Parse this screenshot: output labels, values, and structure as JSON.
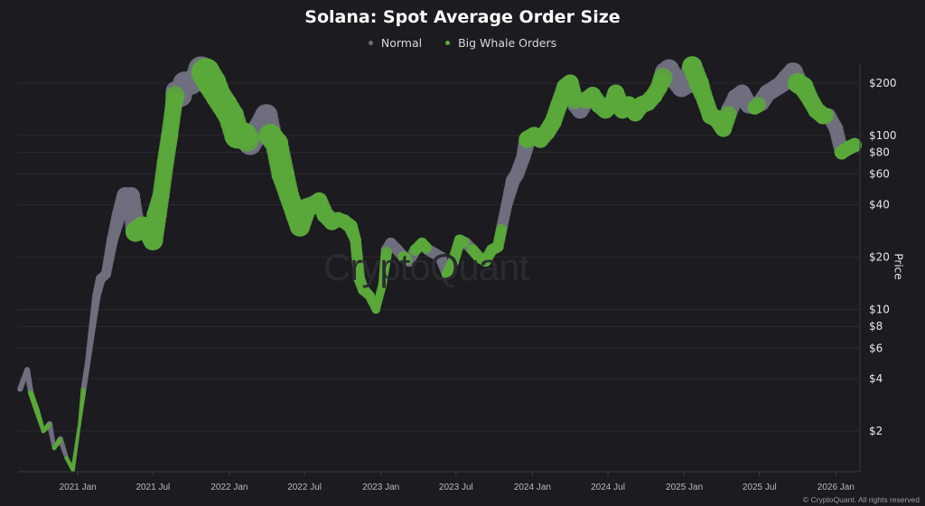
{
  "chart_data": {
    "type": "scatter",
    "title": "Solana: Spot Average Order Size",
    "ylabel": "Price",
    "xlabel": "",
    "yscale": "log",
    "ylim": [
      1.17,
      245
    ],
    "xlim": [
      "2020-08-10",
      "2026-02-28"
    ],
    "grid": true,
    "legend_placement": "top-center",
    "x_ticks": [
      "2021 Jan",
      "2021 Jul",
      "2022 Jan",
      "2022 Jul",
      "2023 Jan",
      "2023 Jul",
      "2024 Jan",
      "2024 Jul",
      "2025 Jan",
      "2025 Jul",
      "2026 Jan"
    ],
    "x_tick_dates": [
      "2021-01-01",
      "2021-07-01",
      "2022-01-01",
      "2022-07-01",
      "2023-01-01",
      "2023-07-01",
      "2024-01-01",
      "2024-07-01",
      "2025-01-01",
      "2025-07-01",
      "2026-01-01"
    ],
    "y_ticks": [
      2,
      4,
      6,
      8,
      10,
      20,
      40,
      60,
      80,
      100,
      200
    ],
    "y_tick_labels": [
      "$2",
      "$4",
      "$6",
      "$8",
      "$10",
      "$20",
      "$40",
      "$60",
      "$80",
      "$100",
      "$200"
    ],
    "series": [
      {
        "name": "Normal",
        "key": "n",
        "color": "#6e6e7e"
      },
      {
        "name": "Big Whale Orders",
        "key": "w",
        "color": "#5aa83a"
      }
    ],
    "points_columns": [
      "date",
      "price",
      "category",
      "relative_order_size"
    ],
    "points": [
      [
        "2020-08-15",
        3.5,
        "n",
        2
      ],
      [
        "2020-09-01",
        4.5,
        "n",
        2
      ],
      [
        "2020-09-10",
        3.3,
        "w",
        2
      ],
      [
        "2020-09-25",
        2.6,
        "w",
        2
      ],
      [
        "2020-10-10",
        2.0,
        "w",
        1.5
      ],
      [
        "2020-10-25",
        2.2,
        "n",
        2
      ],
      [
        "2020-11-05",
        1.6,
        "w",
        1.5
      ],
      [
        "2020-11-20",
        1.8,
        "n",
        2
      ],
      [
        "2020-12-05",
        1.4,
        "w",
        1.5
      ],
      [
        "2020-12-20",
        1.2,
        "w",
        1.5
      ],
      [
        "2021-01-05",
        2.2,
        "w",
        1.2
      ],
      [
        "2021-01-15",
        3.5,
        "n",
        2
      ],
      [
        "2021-01-25",
        5,
        "n",
        2
      ],
      [
        "2021-02-05",
        8,
        "n",
        2.5
      ],
      [
        "2021-02-15",
        12,
        "n",
        3
      ],
      [
        "2021-02-25",
        15,
        "n",
        3.5
      ],
      [
        "2021-03-10",
        16,
        "n",
        3.5
      ],
      [
        "2021-03-25",
        25,
        "n",
        4
      ],
      [
        "2021-04-10",
        35,
        "n",
        5
      ],
      [
        "2021-04-25",
        45,
        "n",
        6
      ],
      [
        "2021-05-10",
        45,
        "n",
        6
      ],
      [
        "2021-05-20",
        28,
        "w",
        7
      ],
      [
        "2021-06-05",
        30,
        "w",
        7
      ],
      [
        "2021-06-20",
        28,
        "w",
        7
      ],
      [
        "2021-07-01",
        25,
        "w",
        7
      ],
      [
        "2021-07-10",
        35,
        "w",
        7
      ],
      [
        "2021-07-20",
        45,
        "w",
        6
      ],
      [
        "2021-07-31",
        70,
        "w",
        6
      ],
      [
        "2021-08-10",
        100,
        "w",
        6
      ],
      [
        "2021-08-20",
        150,
        "w",
        6
      ],
      [
        "2021-08-25",
        180,
        "n",
        7
      ],
      [
        "2021-09-05",
        170,
        "n",
        8
      ],
      [
        "2021-09-15",
        200,
        "n",
        8
      ],
      [
        "2021-10-01",
        200,
        "n",
        8
      ],
      [
        "2021-10-15",
        215,
        "n",
        8
      ],
      [
        "2021-10-25",
        240,
        "n",
        9
      ],
      [
        "2021-11-05",
        230,
        "w",
        10
      ],
      [
        "2021-11-20",
        200,
        "w",
        10
      ],
      [
        "2021-12-05",
        170,
        "w",
        9
      ],
      [
        "2021-12-20",
        150,
        "w",
        9
      ],
      [
        "2022-01-05",
        130,
        "w",
        9
      ],
      [
        "2022-01-20",
        100,
        "w",
        9
      ],
      [
        "2022-02-05",
        100,
        "w",
        9
      ],
      [
        "2022-02-20",
        90,
        "n",
        8
      ],
      [
        "2022-03-15",
        110,
        "n",
        8
      ],
      [
        "2022-03-31",
        130,
        "n",
        8
      ],
      [
        "2022-04-10",
        100,
        "w",
        8
      ],
      [
        "2022-04-25",
        90,
        "w",
        8
      ],
      [
        "2022-05-10",
        60,
        "w",
        8
      ],
      [
        "2022-05-25",
        45,
        "w",
        7
      ],
      [
        "2022-06-10",
        35,
        "w",
        7
      ],
      [
        "2022-06-20",
        30,
        "w",
        7
      ],
      [
        "2022-07-05",
        38,
        "w",
        7
      ],
      [
        "2022-07-20",
        40,
        "n",
        6
      ],
      [
        "2022-08-05",
        42,
        "w",
        6
      ],
      [
        "2022-08-20",
        35,
        "w",
        6
      ],
      [
        "2022-09-05",
        32,
        "w",
        6
      ],
      [
        "2022-09-20",
        33,
        "w",
        5
      ],
      [
        "2022-10-05",
        32,
        "w",
        5
      ],
      [
        "2022-10-20",
        30,
        "w",
        5
      ],
      [
        "2022-11-01",
        25,
        "w",
        4
      ],
      [
        "2022-11-10",
        15,
        "w",
        4
      ],
      [
        "2022-11-20",
        13,
        "w",
        4
      ],
      [
        "2022-12-05",
        12,
        "w",
        3.5
      ],
      [
        "2022-12-20",
        10,
        "w",
        3
      ],
      [
        "2023-01-05",
        14,
        "w",
        3
      ],
      [
        "2023-01-15",
        22,
        "n",
        4
      ],
      [
        "2023-01-25",
        24,
        "n",
        4
      ],
      [
        "2023-02-10",
        22,
        "n",
        4
      ],
      [
        "2023-02-25",
        20,
        "w",
        4
      ],
      [
        "2023-03-10",
        19,
        "n",
        4
      ],
      [
        "2023-03-25",
        22,
        "w",
        4
      ],
      [
        "2023-04-10",
        24,
        "w",
        4
      ],
      [
        "2023-04-25",
        22,
        "n",
        4
      ],
      [
        "2023-05-10",
        21,
        "n",
        4
      ],
      [
        "2023-05-25",
        20,
        "n",
        4
      ],
      [
        "2023-06-10",
        16,
        "w",
        4
      ],
      [
        "2023-06-25",
        19,
        "w",
        4
      ],
      [
        "2023-07-10",
        25,
        "w",
        4
      ],
      [
        "2023-07-25",
        24,
        "n",
        4
      ],
      [
        "2023-08-10",
        22,
        "w",
        4
      ],
      [
        "2023-08-25",
        20,
        "w",
        4
      ],
      [
        "2023-09-10",
        19,
        "w",
        4
      ],
      [
        "2023-09-25",
        22,
        "w",
        4
      ],
      [
        "2023-10-10",
        23,
        "w",
        4
      ],
      [
        "2023-10-20",
        30,
        "n",
        4
      ],
      [
        "2023-10-31",
        40,
        "n",
        4
      ],
      [
        "2023-11-15",
        55,
        "n",
        5
      ],
      [
        "2023-11-25",
        60,
        "n",
        5
      ],
      [
        "2023-12-10",
        75,
        "n",
        5
      ],
      [
        "2023-12-20",
        95,
        "w",
        6
      ],
      [
        "2024-01-05",
        100,
        "w",
        6
      ],
      [
        "2024-01-20",
        95,
        "w",
        6
      ],
      [
        "2024-02-05",
        105,
        "w",
        6
      ],
      [
        "2024-02-20",
        120,
        "w",
        6
      ],
      [
        "2024-03-05",
        150,
        "w",
        6
      ],
      [
        "2024-03-20",
        190,
        "w",
        6
      ],
      [
        "2024-04-01",
        200,
        "w",
        6
      ],
      [
        "2024-04-15",
        150,
        "n",
        6
      ],
      [
        "2024-04-25",
        140,
        "n",
        6
      ],
      [
        "2024-05-10",
        160,
        "w",
        6
      ],
      [
        "2024-05-25",
        170,
        "w",
        6
      ],
      [
        "2024-06-10",
        150,
        "w",
        6
      ],
      [
        "2024-06-25",
        140,
        "w",
        6
      ],
      [
        "2024-07-10",
        150,
        "w",
        6
      ],
      [
        "2024-07-20",
        175,
        "w",
        6
      ],
      [
        "2024-08-05",
        140,
        "w",
        6
      ],
      [
        "2024-08-20",
        150,
        "w",
        6
      ],
      [
        "2024-09-05",
        135,
        "w",
        6
      ],
      [
        "2024-09-20",
        150,
        "w",
        6
      ],
      [
        "2024-10-05",
        155,
        "w",
        6
      ],
      [
        "2024-10-20",
        170,
        "w",
        6
      ],
      [
        "2024-11-01",
        190,
        "w",
        6
      ],
      [
        "2024-11-15",
        230,
        "n",
        7
      ],
      [
        "2024-11-25",
        240,
        "n",
        7
      ],
      [
        "2024-12-10",
        210,
        "n",
        7
      ],
      [
        "2024-12-25",
        190,
        "n",
        7
      ],
      [
        "2025-01-10",
        200,
        "n",
        7
      ],
      [
        "2025-01-20",
        250,
        "w",
        7
      ],
      [
        "2025-02-05",
        200,
        "w",
        7
      ],
      [
        "2025-02-20",
        160,
        "w",
        6
      ],
      [
        "2025-03-05",
        130,
        "w",
        6
      ],
      [
        "2025-03-20",
        125,
        "w",
        6
      ],
      [
        "2025-04-05",
        110,
        "w",
        6
      ],
      [
        "2025-04-20",
        140,
        "n",
        6
      ],
      [
        "2025-05-05",
        165,
        "n",
        6
      ],
      [
        "2025-05-20",
        175,
        "n",
        6
      ],
      [
        "2025-06-05",
        150,
        "n",
        6
      ],
      [
        "2025-06-20",
        145,
        "w",
        5
      ],
      [
        "2025-07-05",
        155,
        "n",
        6
      ],
      [
        "2025-07-20",
        175,
        "n",
        6
      ],
      [
        "2025-08-05",
        185,
        "n",
        6
      ],
      [
        "2025-08-20",
        195,
        "n",
        6
      ],
      [
        "2025-09-05",
        210,
        "n",
        7
      ],
      [
        "2025-09-20",
        230,
        "n",
        7
      ],
      [
        "2025-10-01",
        200,
        "w",
        7
      ],
      [
        "2025-10-15",
        190,
        "w",
        7
      ],
      [
        "2025-11-01",
        160,
        "w",
        6
      ],
      [
        "2025-11-15",
        140,
        "w",
        6
      ],
      [
        "2025-12-01",
        130,
        "w",
        6
      ],
      [
        "2025-12-15",
        130,
        "n",
        5
      ],
      [
        "2026-01-01",
        110,
        "n",
        5
      ],
      [
        "2026-01-15",
        80,
        "w",
        5
      ],
      [
        "2026-02-01",
        85,
        "w",
        5
      ],
      [
        "2026-02-15",
        88,
        "w",
        5
      ]
    ]
  },
  "watermark": "CryptoQuant",
  "footer": {
    "copyright": "© CryptoQuant. All rights reserved"
  },
  "colors": {
    "background": "#1b1b20",
    "normal": "#6e6e7e",
    "whale": "#5aa83a",
    "grid": "#2a2a31"
  }
}
